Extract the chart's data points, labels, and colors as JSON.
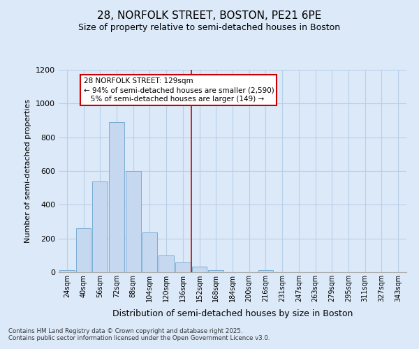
{
  "title1": "28, NORFOLK STREET, BOSTON, PE21 6PE",
  "title2": "Size of property relative to semi-detached houses in Boston",
  "xlabel": "Distribution of semi-detached houses by size in Boston",
  "ylabel": "Number of semi-detached properties",
  "categories": [
    "24sqm",
    "40sqm",
    "56sqm",
    "72sqm",
    "88sqm",
    "104sqm",
    "120sqm",
    "136sqm",
    "152sqm",
    "168sqm",
    "184sqm",
    "200sqm",
    "216sqm",
    "231sqm",
    "247sqm",
    "263sqm",
    "279sqm",
    "295sqm",
    "311sqm",
    "327sqm",
    "343sqm"
  ],
  "values": [
    12,
    260,
    540,
    890,
    600,
    235,
    100,
    58,
    35,
    13,
    0,
    0,
    14,
    0,
    0,
    0,
    0,
    0,
    0,
    0,
    0
  ],
  "bar_color": "#c5d8f0",
  "bar_edge_color": "#7aadd4",
  "vline_color": "#cc0000",
  "annotation_text": "28 NORFOLK STREET: 129sqm\n← 94% of semi-detached houses are smaller (2,590)\n   5% of semi-detached houses are larger (149) →",
  "annotation_box_color": "#ffffff",
  "annotation_border_color": "#cc0000",
  "background_color": "#dce9f8",
  "grid_color": "#b8cfe8",
  "footer_text": "Contains HM Land Registry data © Crown copyright and database right 2025.\nContains public sector information licensed under the Open Government Licence v3.0.",
  "ylim": [
    0,
    1200
  ],
  "yticks": [
    0,
    200,
    400,
    600,
    800,
    1000,
    1200
  ],
  "vline_pos": 7.5
}
